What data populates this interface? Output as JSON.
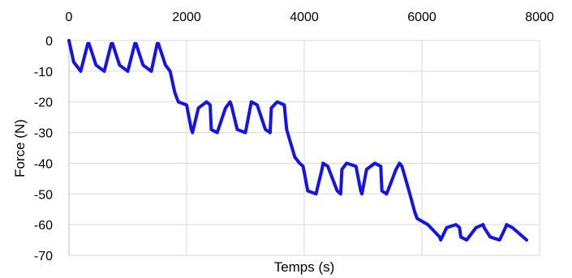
{
  "chart_data": {
    "type": "line",
    "xlabel": "Temps (s)",
    "ylabel": "Force (N)",
    "xlim": [
      0,
      8000
    ],
    "ylim": [
      -70,
      0
    ],
    "x_ticks": [
      0,
      2000,
      4000,
      6000,
      8000
    ],
    "y_ticks": [
      0,
      -10,
      -20,
      -30,
      -40,
      -50,
      -60,
      -70
    ],
    "x_axis_position": "top",
    "grid": true,
    "legend": "none",
    "series": [
      {
        "color": "#1414e6",
        "x": [
          0,
          80,
          200,
          320,
          340,
          460,
          600,
          720,
          740,
          860,
          1000,
          1120,
          1140,
          1260,
          1400,
          1500,
          1520,
          1640,
          1720,
          1800,
          1860,
          2000,
          2080,
          2100,
          2200,
          2340,
          2400,
          2420,
          2520,
          2660,
          2740,
          2760,
          2860,
          3000,
          3080,
          3100,
          3200,
          3340,
          3420,
          3440,
          3540,
          3660,
          3700,
          3840,
          3920,
          3980,
          4060,
          4200,
          4300,
          4320,
          4400,
          4560,
          4620,
          4640,
          4720,
          4880,
          4960,
          4980,
          5060,
          5200,
          5300,
          5320,
          5400,
          5560,
          5620,
          5660,
          5780,
          5880,
          5920,
          6100,
          6300,
          6320,
          6420,
          6580,
          6640,
          6660,
          6760,
          6920,
          7040,
          7060,
          7160,
          7320,
          7420,
          7440,
          7540,
          7780
        ],
        "y": [
          0,
          -7,
          -10,
          -1,
          -1,
          -8,
          -10,
          -1,
          -1,
          -8,
          -10,
          -1,
          -1,
          -8,
          -10,
          -1,
          -1,
          -8,
          -10,
          -17,
          -20,
          -21,
          -29,
          -30,
          -22,
          -20,
          -21,
          -29,
          -30,
          -22,
          -20,
          -21,
          -29,
          -30,
          -22,
          -20,
          -21,
          -29,
          -30,
          -22,
          -20,
          -21,
          -29,
          -38,
          -40,
          -41,
          -49,
          -50,
          -42,
          -40,
          -41,
          -49,
          -50,
          -42,
          -40,
          -41,
          -49,
          -50,
          -42,
          -40,
          -41,
          -49,
          -50,
          -42,
          -40,
          -41,
          -49,
          -56,
          -58,
          -60,
          -64,
          -65,
          -61,
          -60,
          -61,
          -64,
          -65,
          -61,
          -60,
          -61,
          -64,
          -65,
          -61,
          -60,
          -61,
          -65
        ]
      }
    ]
  }
}
